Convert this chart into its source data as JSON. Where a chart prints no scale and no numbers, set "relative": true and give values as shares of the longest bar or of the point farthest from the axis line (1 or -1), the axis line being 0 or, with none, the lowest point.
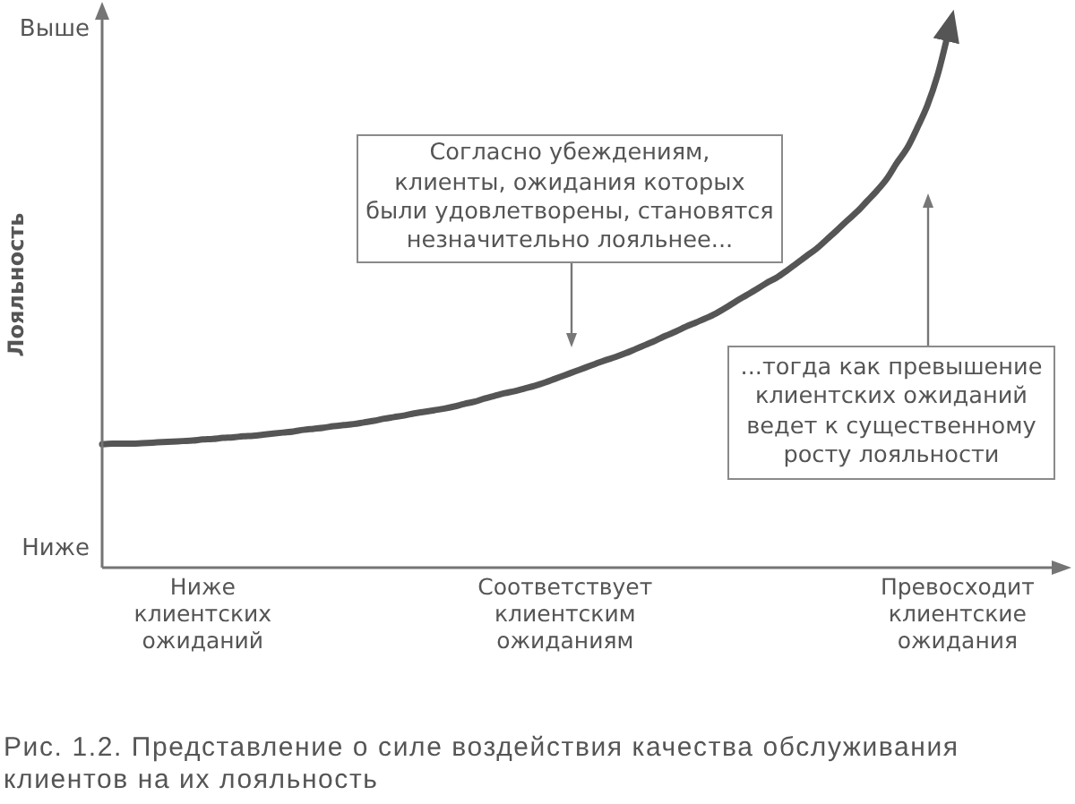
{
  "chart_data": {
    "type": "line",
    "title": "Рис. 1.2. Представление о силе воздействия качества обслуживания клиентов на их лояльность",
    "ylabel": "Лояльность",
    "relative": true,
    "categories": [
      null,
      null,
      null,
      null,
      null,
      null,
      null,
      null,
      null,
      null,
      "Ниже клиентских ожиданий",
      null,
      null,
      null,
      null,
      null,
      null,
      null,
      null,
      null,
      null,
      null,
      null,
      null,
      null,
      null,
      null,
      null,
      null,
      null,
      null,
      null,
      null,
      null,
      null,
      null,
      null,
      null,
      null,
      null,
      null,
      null,
      null,
      null,
      null,
      null,
      "Соответствует клиентским ожиданиям",
      null,
      null,
      null,
      null,
      null,
      null,
      null,
      null,
      null,
      null,
      null,
      null,
      null,
      null,
      null,
      null,
      null,
      null,
      null,
      null,
      null,
      null,
      null,
      null,
      null,
      null,
      null,
      null,
      null,
      null,
      null,
      null,
      null,
      null,
      null,
      null,
      null,
      null,
      "Превосходит клиентские ожидания",
      null,
      null,
      null,
      null,
      null,
      null,
      null,
      null,
      null
    ],
    "series": [
      {
        "color": "#555555",
        "values": [
          0.232,
          0.233,
          0.233,
          0.233,
          0.234,
          0.235,
          0.236,
          0.237,
          0.238,
          0.239,
          0.241,
          0.242,
          0.244,
          0.245,
          0.247,
          0.248,
          0.25,
          0.252,
          0.254,
          0.256,
          0.259,
          0.261,
          0.263,
          0.266,
          0.268,
          0.27,
          0.273,
          0.276,
          0.28,
          0.283,
          0.286,
          0.29,
          0.293,
          0.296,
          0.299,
          0.303,
          0.308,
          0.312,
          0.318,
          0.323,
          0.328,
          0.332,
          0.337,
          0.342,
          0.348,
          0.355,
          0.362,
          0.369,
          0.376,
          0.383,
          0.39,
          0.396,
          0.403,
          0.411,
          0.419,
          0.427,
          0.436,
          0.444,
          0.453,
          0.461,
          0.469,
          0.478,
          0.489,
          0.501,
          0.512,
          0.523,
          0.535,
          0.545,
          0.558,
          0.572,
          0.586,
          0.6,
          0.617,
          0.634,
          0.652,
          0.669,
          0.689,
          0.709,
          0.732,
          0.762,
          0.789,
          0.827,
          0.869,
          0.925,
          1,
          null,
          null,
          null,
          null,
          null,
          null,
          null,
          null,
          null,
          null
        ]
      }
    ],
    "annotations": [
      "Выше",
      "Ниже",
      "Согласно убеждениям,\nклиенты, ожидания которых\nбыли удовлетворены, становятся\nнезначительно лояльнее...",
      "...тогда как превышение\nклиентских ожиданий\nведет к существенному\nросту лояльности"
    ]
  }
}
